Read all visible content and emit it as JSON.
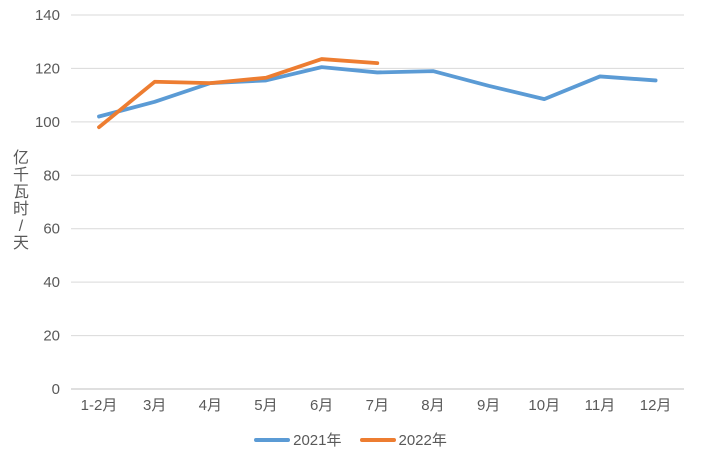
{
  "chart_data": {
    "type": "line",
    "categories": [
      "1-2月",
      "3月",
      "4月",
      "5月",
      "6月",
      "7月",
      "8月",
      "9月",
      "10月",
      "11月",
      "12月"
    ],
    "series": [
      {
        "name": "2021年",
        "color": "#5B9BD5",
        "values": [
          102,
          107.5,
          114.5,
          115.5,
          120.5,
          118.5,
          119,
          113.5,
          108.5,
          117,
          115.5
        ]
      },
      {
        "name": "2022年",
        "color": "#ED7D31",
        "values": [
          98,
          115,
          114.5,
          116.5,
          123.5,
          122,
          null,
          null,
          null,
          null,
          null
        ]
      }
    ],
    "title": "",
    "xlabel": "",
    "ylabel": "亿千瓦时/天",
    "ylim": [
      0,
      140
    ],
    "yticks": [
      0,
      20,
      40,
      60,
      80,
      100,
      120,
      140
    ],
    "grid": true,
    "legend_position": "bottom"
  },
  "colors": {
    "grid_line": "#D9D9D9",
    "axis_line": "#BFBFBF",
    "tick_text": "#595959",
    "background": "#FFFFFF"
  }
}
